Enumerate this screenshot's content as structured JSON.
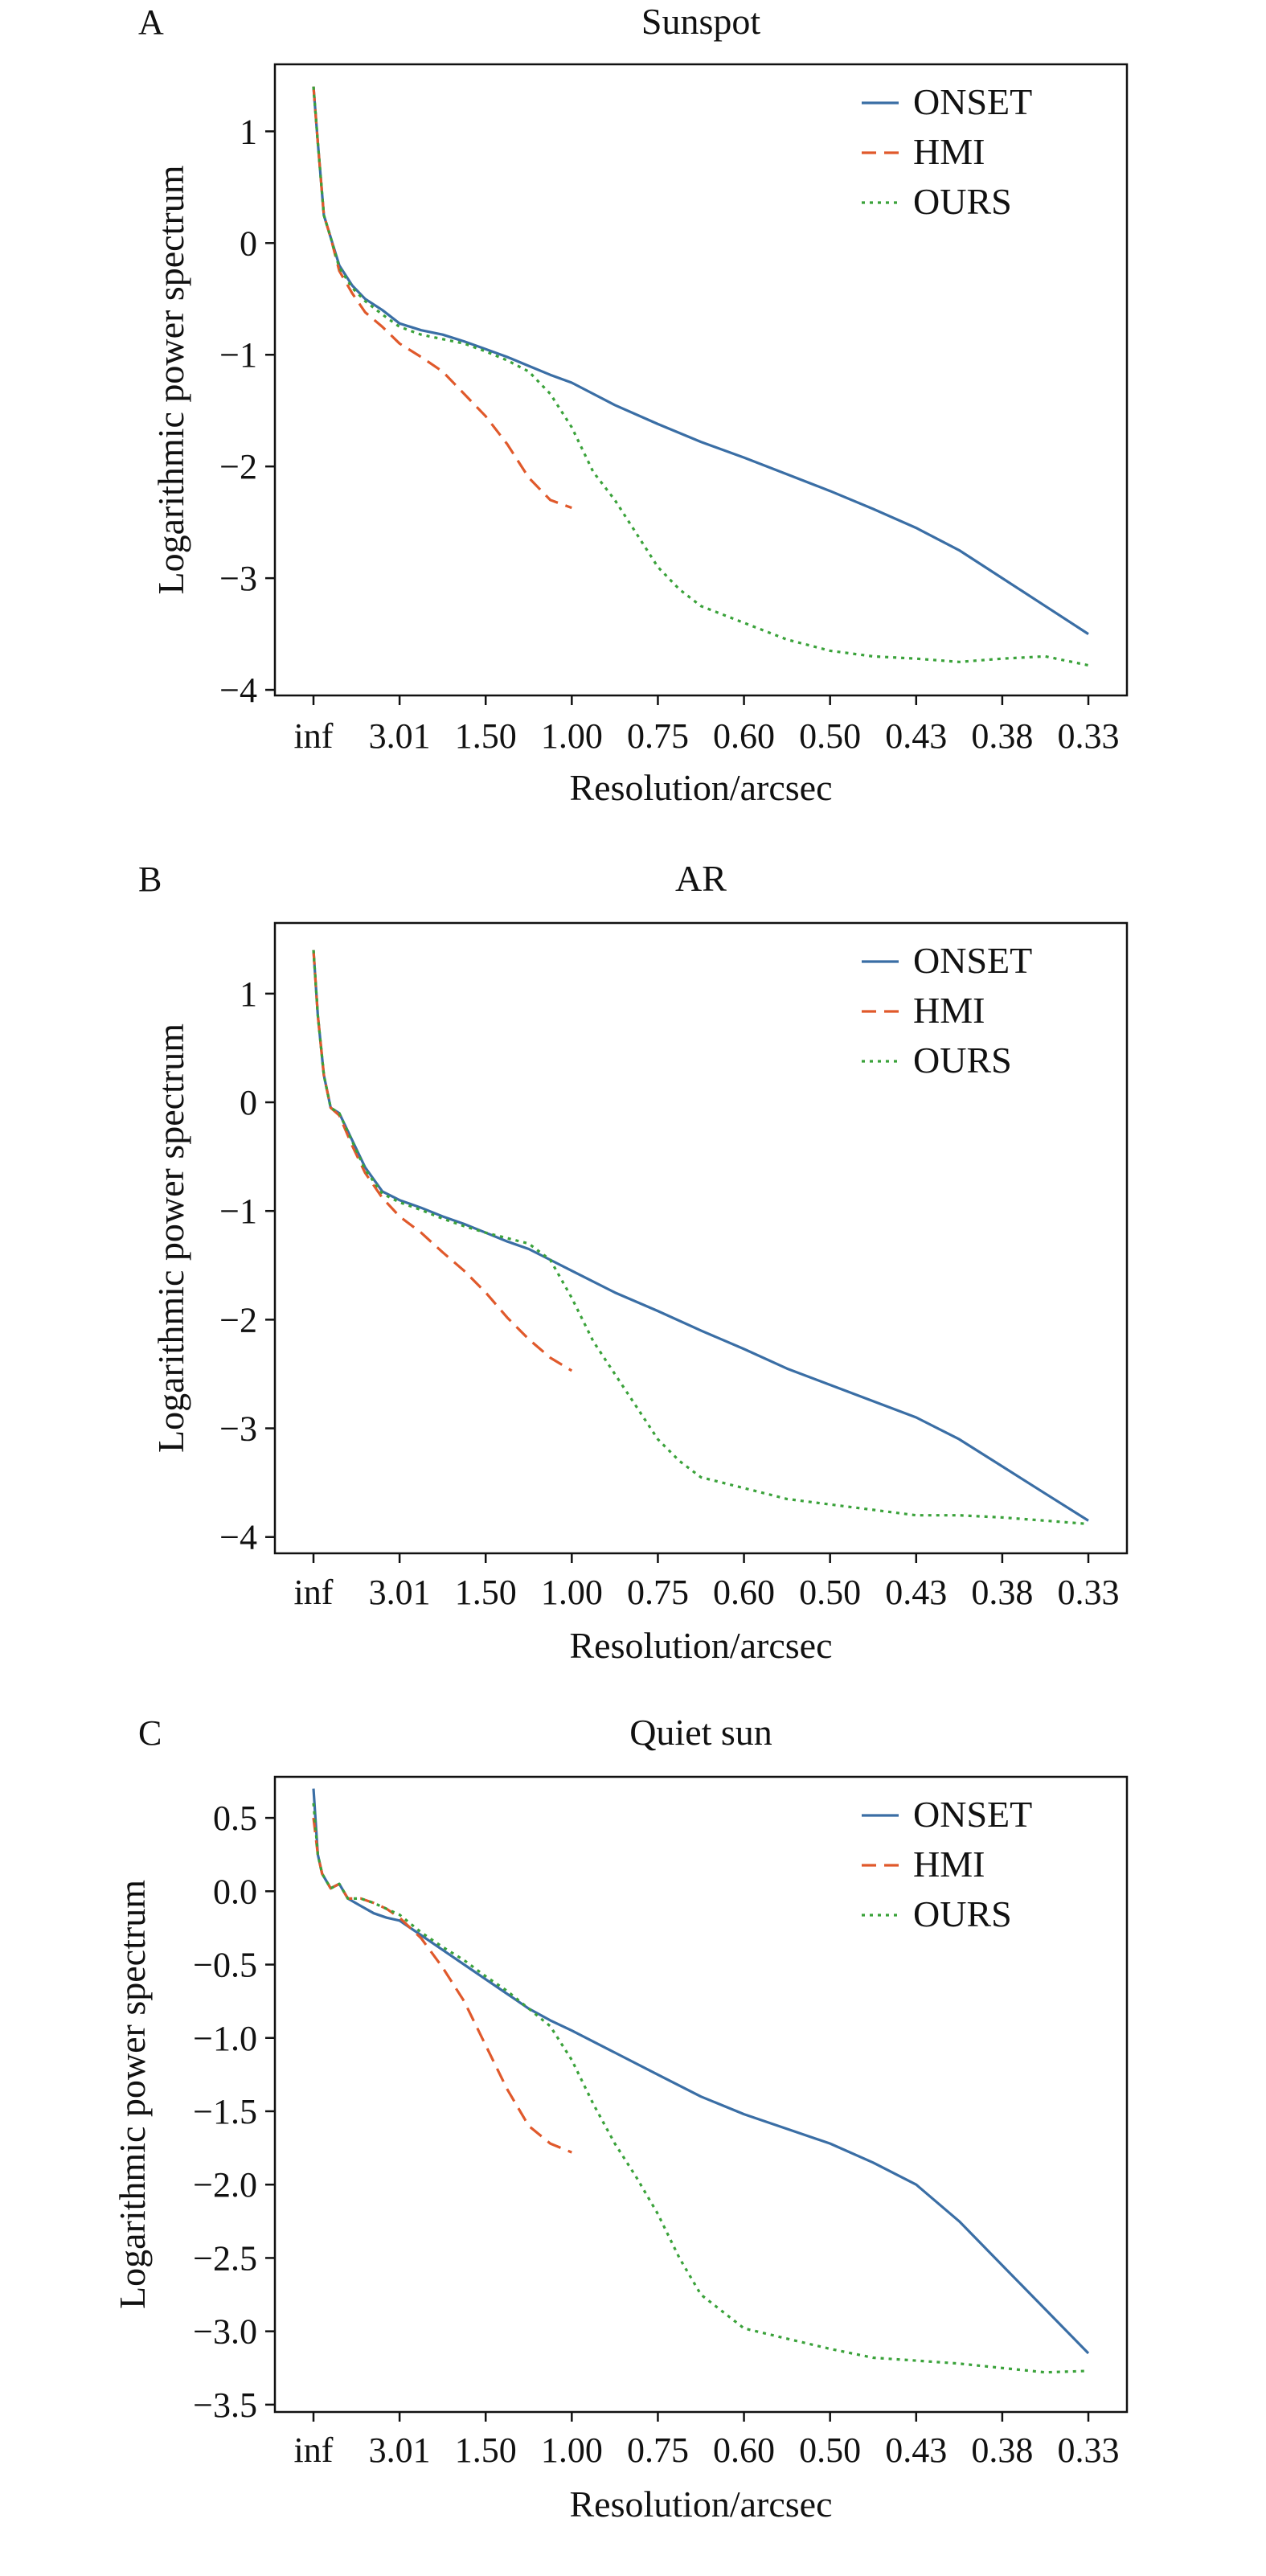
{
  "chart_data": [
    {
      "type": "line",
      "panel_letter": "A",
      "title": "Sunspot",
      "xlabel": "Resolution/arcsec",
      "ylabel": "Logarithmic power spectrum",
      "xticks": [
        "inf",
        "3.01",
        "1.50",
        "1.00",
        "0.75",
        "0.60",
        "0.50",
        "0.43",
        "0.38",
        "0.33"
      ],
      "xlim": [
        0,
        9
      ],
      "ylim": [
        -4.05,
        1.6
      ],
      "yticks": [
        1,
        0,
        -1,
        -2,
        -3,
        -4
      ],
      "ytick_labels": [
        "1",
        "0",
        "−1",
        "−2",
        "−3",
        "−4"
      ],
      "legend": "top-right",
      "series": [
        {
          "name": "ONSET",
          "color": "#3a6ea5",
          "dash": "solid",
          "x": [
            0,
            0.05,
            0.12,
            0.2,
            0.3,
            0.45,
            0.6,
            0.8,
            1.0,
            1.25,
            1.5,
            1.75,
            2.0,
            2.25,
            2.5,
            2.75,
            3.0,
            3.5,
            4.0,
            4.5,
            5.0,
            5.5,
            6.0,
            6.5,
            7.0,
            7.5,
            8.0,
            8.5,
            9.0
          ],
          "y": [
            1.4,
            0.9,
            0.25,
            0.05,
            -0.2,
            -0.38,
            -0.5,
            -0.6,
            -0.72,
            -0.78,
            -0.82,
            -0.88,
            -0.95,
            -1.02,
            -1.1,
            -1.18,
            -1.25,
            -1.45,
            -1.62,
            -1.78,
            -1.92,
            -2.07,
            -2.22,
            -2.38,
            -2.55,
            -2.75,
            -3.0,
            -3.25,
            -3.5
          ]
        },
        {
          "name": "HMI",
          "color": "#e0592b",
          "dash": "dashed",
          "x": [
            0,
            0.05,
            0.12,
            0.2,
            0.3,
            0.45,
            0.6,
            0.8,
            1.0,
            1.25,
            1.5,
            1.75,
            2.0,
            2.25,
            2.5,
            2.75,
            3.0
          ],
          "y": [
            1.4,
            0.9,
            0.25,
            0.05,
            -0.25,
            -0.45,
            -0.62,
            -0.75,
            -0.9,
            -1.02,
            -1.15,
            -1.35,
            -1.55,
            -1.8,
            -2.1,
            -2.3,
            -2.37
          ]
        },
        {
          "name": "OURS",
          "color": "#3aa23a",
          "dash": "dotted",
          "x": [
            0,
            0.05,
            0.12,
            0.2,
            0.3,
            0.45,
            0.6,
            0.8,
            1.0,
            1.25,
            1.5,
            1.75,
            2.0,
            2.25,
            2.5,
            2.75,
            3.0,
            3.25,
            3.5,
            3.75,
            4.0,
            4.25,
            4.5,
            5.0,
            5.5,
            6.0,
            6.5,
            7.0,
            7.5,
            8.0,
            8.5,
            9.0
          ],
          "y": [
            1.4,
            0.9,
            0.25,
            0.05,
            -0.22,
            -0.4,
            -0.52,
            -0.64,
            -0.75,
            -0.82,
            -0.86,
            -0.9,
            -0.97,
            -1.05,
            -1.15,
            -1.35,
            -1.65,
            -2.05,
            -2.3,
            -2.6,
            -2.9,
            -3.1,
            -3.25,
            -3.4,
            -3.55,
            -3.65,
            -3.7,
            -3.72,
            -3.75,
            -3.72,
            -3.7,
            -3.78
          ]
        }
      ]
    },
    {
      "type": "line",
      "panel_letter": "B",
      "title": "AR",
      "xlabel": "Resolution/arcsec",
      "ylabel": "Logarithmic power spectrum",
      "xticks": [
        "inf",
        "3.01",
        "1.50",
        "1.00",
        "0.75",
        "0.60",
        "0.50",
        "0.43",
        "0.38",
        "0.33"
      ],
      "xlim": [
        0,
        9
      ],
      "ylim": [
        -4.15,
        1.65
      ],
      "yticks": [
        1,
        0,
        -1,
        -2,
        -3,
        -4
      ],
      "ytick_labels": [
        "1",
        "0",
        "−1",
        "−2",
        "−3",
        "−4"
      ],
      "legend": "top-right",
      "series": [
        {
          "name": "ONSET",
          "color": "#3a6ea5",
          "dash": "solid",
          "x": [
            0,
            0.05,
            0.12,
            0.2,
            0.3,
            0.45,
            0.6,
            0.8,
            1.0,
            1.25,
            1.5,
            1.75,
            2.0,
            2.25,
            2.5,
            2.75,
            3.0,
            3.5,
            4.0,
            4.5,
            5.0,
            5.5,
            6.0,
            6.5,
            7.0,
            7.5,
            8.0,
            8.5,
            9.0
          ],
          "y": [
            1.4,
            0.8,
            0.25,
            -0.05,
            -0.1,
            -0.35,
            -0.6,
            -0.82,
            -0.9,
            -0.97,
            -1.05,
            -1.12,
            -1.2,
            -1.28,
            -1.35,
            -1.45,
            -1.55,
            -1.75,
            -1.92,
            -2.1,
            -2.27,
            -2.45,
            -2.6,
            -2.75,
            -2.9,
            -3.1,
            -3.35,
            -3.6,
            -3.85
          ]
        },
        {
          "name": "HMI",
          "color": "#e0592b",
          "dash": "dashed",
          "x": [
            0,
            0.05,
            0.12,
            0.2,
            0.3,
            0.45,
            0.6,
            0.8,
            1.0,
            1.25,
            1.5,
            1.75,
            2.0,
            2.25,
            2.5,
            2.75,
            3.0
          ],
          "y": [
            1.4,
            0.8,
            0.25,
            -0.05,
            -0.12,
            -0.4,
            -0.65,
            -0.88,
            -1.05,
            -1.2,
            -1.38,
            -1.55,
            -1.75,
            -1.98,
            -2.18,
            -2.35,
            -2.47
          ]
        },
        {
          "name": "OURS",
          "color": "#3aa23a",
          "dash": "dotted",
          "x": [
            0,
            0.05,
            0.12,
            0.2,
            0.3,
            0.45,
            0.6,
            0.8,
            1.0,
            1.25,
            1.5,
            1.75,
            2.0,
            2.25,
            2.5,
            2.75,
            3.0,
            3.25,
            3.5,
            3.75,
            4.0,
            4.25,
            4.5,
            5.0,
            5.5,
            6.0,
            6.5,
            7.0,
            7.5,
            8.0,
            8.5,
            9.0
          ],
          "y": [
            1.4,
            0.8,
            0.25,
            -0.05,
            -0.1,
            -0.36,
            -0.62,
            -0.84,
            -0.92,
            -0.99,
            -1.07,
            -1.14,
            -1.2,
            -1.25,
            -1.3,
            -1.45,
            -1.8,
            -2.2,
            -2.5,
            -2.8,
            -3.1,
            -3.3,
            -3.45,
            -3.55,
            -3.65,
            -3.7,
            -3.75,
            -3.8,
            -3.8,
            -3.82,
            -3.85,
            -3.88
          ]
        }
      ]
    },
    {
      "type": "line",
      "panel_letter": "C",
      "title": "Quiet sun",
      "xlabel": "Resolution/arcsec",
      "ylabel": "Logarithmic power spectrum",
      "xticks": [
        "inf",
        "3.01",
        "1.50",
        "1.00",
        "0.75",
        "0.60",
        "0.50",
        "0.43",
        "0.38",
        "0.33"
      ],
      "xlim": [
        0,
        9
      ],
      "ylim": [
        -3.55,
        0.78
      ],
      "yticks": [
        0.5,
        0.0,
        -0.5,
        -1.0,
        -1.5,
        -2.0,
        -2.5,
        -3.0,
        -3.5
      ],
      "ytick_labels": [
        "0.5",
        "0.0",
        "−0.5",
        "−1.0",
        "−1.5",
        "−2.0",
        "−2.5",
        "−3.0",
        "−3.5"
      ],
      "legend": "top-right",
      "series": [
        {
          "name": "ONSET",
          "color": "#3a6ea5",
          "dash": "solid",
          "x": [
            0,
            0.05,
            0.1,
            0.2,
            0.3,
            0.4,
            0.55,
            0.7,
            0.85,
            1.0,
            1.25,
            1.5,
            1.75,
            2.0,
            2.25,
            2.5,
            2.75,
            3.0,
            3.5,
            4.0,
            4.5,
            5.0,
            5.5,
            6.0,
            6.5,
            7.0,
            7.5,
            8.0,
            8.5,
            9.0
          ],
          "y": [
            0.7,
            0.25,
            0.12,
            0.02,
            0.05,
            -0.05,
            -0.1,
            -0.15,
            -0.18,
            -0.2,
            -0.3,
            -0.4,
            -0.5,
            -0.6,
            -0.7,
            -0.8,
            -0.88,
            -0.95,
            -1.1,
            -1.25,
            -1.4,
            -1.52,
            -1.62,
            -1.72,
            -1.85,
            -2.0,
            -2.25,
            -2.55,
            -2.85,
            -3.15
          ]
        },
        {
          "name": "HMI",
          "color": "#e0592b",
          "dash": "dashed",
          "x": [
            0,
            0.05,
            0.1,
            0.2,
            0.3,
            0.4,
            0.55,
            0.7,
            0.85,
            1.0,
            1.25,
            1.5,
            1.75,
            2.0,
            2.25,
            2.5,
            2.75,
            3.0
          ],
          "y": [
            0.5,
            0.25,
            0.12,
            0.02,
            0.05,
            -0.05,
            -0.05,
            -0.08,
            -0.12,
            -0.18,
            -0.32,
            -0.52,
            -0.75,
            -1.05,
            -1.35,
            -1.6,
            -1.72,
            -1.78
          ]
        },
        {
          "name": "OURS",
          "color": "#3aa23a",
          "dash": "dotted",
          "x": [
            0,
            0.05,
            0.1,
            0.2,
            0.3,
            0.4,
            0.55,
            0.7,
            0.85,
            1.0,
            1.25,
            1.5,
            1.75,
            2.0,
            2.25,
            2.5,
            2.75,
            3.0,
            3.25,
            3.5,
            3.75,
            4.0,
            4.25,
            4.5,
            5.0,
            5.5,
            6.0,
            6.5,
            7.0,
            7.5,
            8.0,
            8.5,
            9.0
          ],
          "y": [
            0.6,
            0.25,
            0.12,
            0.02,
            0.05,
            -0.05,
            -0.05,
            -0.08,
            -0.12,
            -0.16,
            -0.28,
            -0.38,
            -0.47,
            -0.58,
            -0.68,
            -0.8,
            -0.92,
            -1.15,
            -1.45,
            -1.72,
            -1.95,
            -2.2,
            -2.5,
            -2.75,
            -2.98,
            -3.05,
            -3.12,
            -3.18,
            -3.2,
            -3.22,
            -3.25,
            -3.28,
            -3.27
          ]
        }
      ]
    }
  ]
}
